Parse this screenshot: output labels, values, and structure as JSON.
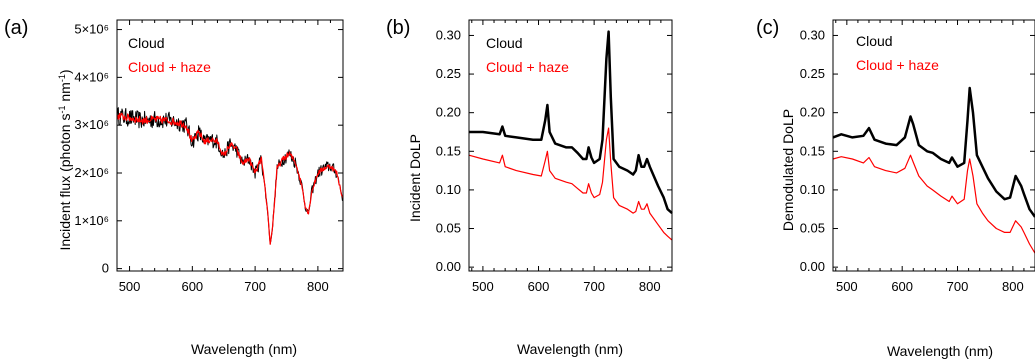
{
  "colors": {
    "cloud": "#000000",
    "cloud_haze": "#ff0000"
  },
  "chart_data": [
    {
      "panel_label": "(a)",
      "type": "line",
      "xlabel": "Wavelength (nm)",
      "ylabel": "Incident flux (photon s⁻¹ nm⁻¹)",
      "xlim": [
        480,
        840
      ],
      "ylim": [
        -50000,
        5200000
      ],
      "xticks": [
        500,
        600,
        700,
        800
      ],
      "xtick_labels": [
        "500",
        "600",
        "700",
        "800"
      ],
      "yticks": [
        0,
        1000000,
        2000000,
        3000000,
        4000000,
        5000000
      ],
      "ytick_labels": [
        "0",
        "1×10⁶",
        "2×10⁶",
        "3×10⁶",
        "4×10⁶",
        "5×10⁶"
      ],
      "legend_position": "top-left",
      "series": [
        {
          "name": "Cloud",
          "color": "#000000",
          "noise": 0.06,
          "x": [
            480,
            500,
            520,
            540,
            560,
            580,
            590,
            600,
            610,
            620,
            630,
            640,
            650,
            660,
            670,
            680,
            690,
            700,
            710,
            720,
            724,
            728,
            735,
            745,
            755,
            765,
            775,
            780,
            785,
            790,
            800,
            810,
            820,
            830,
            840
          ],
          "y": [
            3200000,
            3150000,
            3100000,
            3120000,
            3100000,
            3050000,
            3000000,
            2650000,
            2850000,
            2650000,
            2700000,
            2650000,
            2350000,
            2600000,
            2500000,
            2200000,
            2300000,
            2000000,
            2300000,
            1200000,
            500000,
            900000,
            2100000,
            2300000,
            2400000,
            2200000,
            1700000,
            1300000,
            1150000,
            1600000,
            2000000,
            2100000,
            2150000,
            2000000,
            1450000
          ]
        },
        {
          "name": "Cloud + haze",
          "color": "#ff0000",
          "noise": 0.025,
          "x": [
            480,
            500,
            520,
            540,
            560,
            580,
            590,
            600,
            610,
            620,
            630,
            640,
            650,
            660,
            670,
            680,
            690,
            700,
            710,
            720,
            724,
            728,
            735,
            745,
            755,
            765,
            775,
            780,
            785,
            790,
            800,
            810,
            820,
            830,
            840
          ],
          "y": [
            3200000,
            3150000,
            3100000,
            3120000,
            3100000,
            3050000,
            3000000,
            2650000,
            2850000,
            2650000,
            2700000,
            2650000,
            2350000,
            2600000,
            2500000,
            2200000,
            2300000,
            2000000,
            2300000,
            1200000,
            500000,
            900000,
            2100000,
            2300000,
            2400000,
            2200000,
            1700000,
            1300000,
            1150000,
            1600000,
            2000000,
            2100000,
            2150000,
            2000000,
            1450000
          ]
        }
      ]
    },
    {
      "panel_label": "(b)",
      "type": "line",
      "xlabel": "Wavelength (nm)",
      "ylabel": "Incident DoLP",
      "xlim": [
        475,
        840
      ],
      "ylim": [
        -0.005,
        0.32
      ],
      "xticks": [
        500,
        600,
        700,
        800
      ],
      "xtick_labels": [
        "500",
        "600",
        "700",
        "800"
      ],
      "yticks": [
        0,
        0.05,
        0.1,
        0.15,
        0.2,
        0.25,
        0.3
      ],
      "ytick_labels": [
        "0.00",
        "0.05",
        "0.10",
        "0.15",
        "0.20",
        "0.25",
        "0.30"
      ],
      "legend_position": "top-left",
      "series": [
        {
          "name": "Cloud",
          "color": "#000000",
          "x": [
            475,
            500,
            530,
            535,
            540,
            560,
            590,
            605,
            612,
            616,
            620,
            630,
            650,
            660,
            670,
            680,
            686,
            690,
            695,
            700,
            710,
            715,
            722,
            726,
            730,
            735,
            745,
            760,
            770,
            775,
            780,
            785,
            790,
            795,
            800,
            815,
            825,
            832,
            840
          ],
          "y": [
            0.175,
            0.175,
            0.172,
            0.182,
            0.17,
            0.168,
            0.165,
            0.165,
            0.19,
            0.21,
            0.175,
            0.16,
            0.155,
            0.155,
            0.148,
            0.14,
            0.14,
            0.155,
            0.142,
            0.135,
            0.14,
            0.165,
            0.27,
            0.305,
            0.22,
            0.14,
            0.13,
            0.125,
            0.12,
            0.125,
            0.145,
            0.13,
            0.13,
            0.14,
            0.13,
            0.105,
            0.09,
            0.075,
            0.07
          ]
        },
        {
          "name": "Cloud + haze",
          "color": "#ff0000",
          "x": [
            475,
            500,
            530,
            535,
            540,
            560,
            590,
            605,
            612,
            616,
            620,
            630,
            650,
            660,
            670,
            680,
            686,
            690,
            695,
            700,
            710,
            715,
            722,
            726,
            730,
            735,
            745,
            760,
            770,
            775,
            780,
            785,
            790,
            795,
            800,
            815,
            825,
            832,
            840
          ],
          "y": [
            0.145,
            0.14,
            0.135,
            0.145,
            0.13,
            0.125,
            0.12,
            0.118,
            0.138,
            0.15,
            0.125,
            0.115,
            0.11,
            0.108,
            0.102,
            0.096,
            0.096,
            0.108,
            0.096,
            0.09,
            0.094,
            0.11,
            0.165,
            0.18,
            0.135,
            0.09,
            0.08,
            0.075,
            0.07,
            0.072,
            0.085,
            0.075,
            0.075,
            0.082,
            0.07,
            0.055,
            0.045,
            0.04,
            0.035
          ]
        }
      ]
    },
    {
      "panel_label": "(c)",
      "type": "line",
      "xlabel": "Wavelength (nm)",
      "ylabel": "Demodulated DoLP",
      "xlim": [
        475,
        840
      ],
      "ylim": [
        -0.005,
        0.32
      ],
      "xticks": [
        500,
        600,
        700,
        800
      ],
      "xtick_labels": [
        "500",
        "600",
        "700",
        "800"
      ],
      "yticks": [
        0,
        0.05,
        0.1,
        0.15,
        0.2,
        0.25,
        0.3
      ],
      "ytick_labels": [
        "0.00",
        "0.05",
        "0.10",
        "0.15",
        "0.20",
        "0.25",
        "0.30"
      ],
      "legend_position": "top-left",
      "series": [
        {
          "name": "Cloud",
          "color": "#000000",
          "x": [
            475,
            490,
            510,
            530,
            540,
            550,
            570,
            590,
            605,
            615,
            620,
            630,
            645,
            655,
            670,
            685,
            690,
            700,
            712,
            718,
            722,
            728,
            735,
            745,
            755,
            770,
            785,
            795,
            805,
            815,
            820,
            830,
            840
          ],
          "y": [
            0.168,
            0.172,
            0.168,
            0.17,
            0.18,
            0.165,
            0.16,
            0.158,
            0.168,
            0.195,
            0.185,
            0.158,
            0.15,
            0.148,
            0.14,
            0.135,
            0.142,
            0.13,
            0.135,
            0.19,
            0.232,
            0.2,
            0.145,
            0.13,
            0.115,
            0.098,
            0.088,
            0.09,
            0.118,
            0.105,
            0.095,
            0.075,
            0.065
          ]
        },
        {
          "name": "Cloud + haze",
          "color": "#ff0000",
          "x": [
            475,
            490,
            510,
            530,
            540,
            550,
            570,
            590,
            605,
            615,
            620,
            630,
            645,
            655,
            670,
            685,
            690,
            700,
            712,
            718,
            722,
            728,
            735,
            745,
            755,
            770,
            785,
            795,
            805,
            815,
            820,
            830,
            840
          ],
          "y": [
            0.14,
            0.143,
            0.14,
            0.135,
            0.142,
            0.13,
            0.125,
            0.122,
            0.128,
            0.145,
            0.136,
            0.118,
            0.105,
            0.1,
            0.092,
            0.085,
            0.092,
            0.082,
            0.088,
            0.125,
            0.14,
            0.118,
            0.082,
            0.07,
            0.06,
            0.05,
            0.045,
            0.045,
            0.06,
            0.052,
            0.045,
            0.03,
            0.018
          ]
        }
      ]
    }
  ]
}
